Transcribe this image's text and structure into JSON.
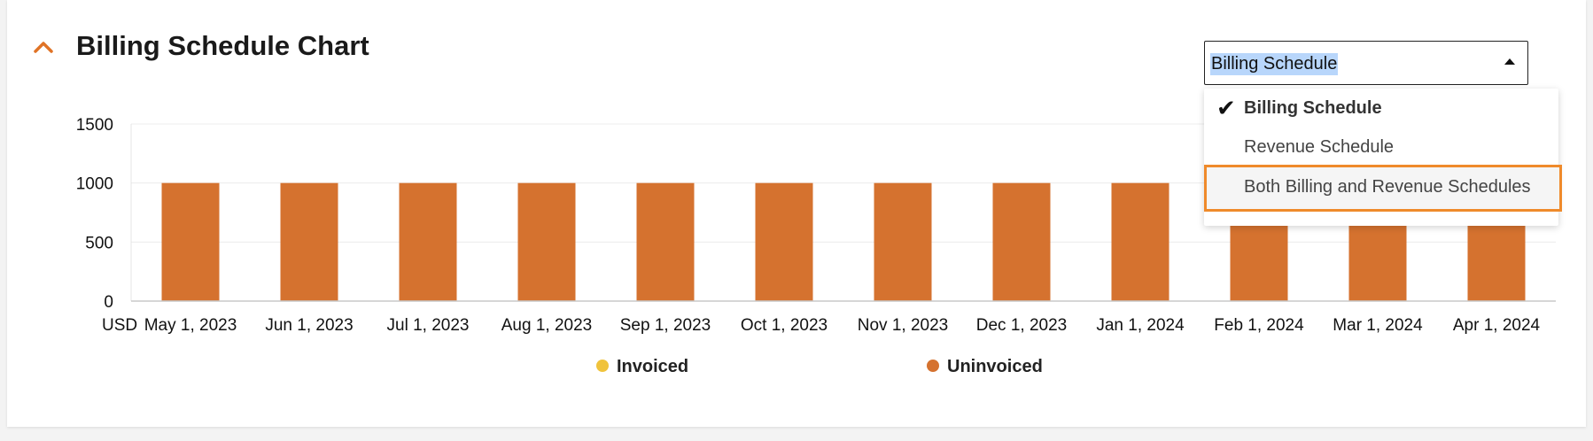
{
  "header": {
    "title": "Billing Schedule Chart"
  },
  "icons": {
    "collapse": "chevron-up-icon",
    "check": "check-icon",
    "caret": "caret-up-icon"
  },
  "select": {
    "value": "Billing Schedule",
    "options": [
      {
        "label": "Billing Schedule",
        "selected": true
      },
      {
        "label": "Revenue Schedule",
        "selected": false
      },
      {
        "label": "Both Billing and Revenue Schedules",
        "selected": false,
        "focused": true
      }
    ]
  },
  "colors": {
    "accent": "#e07326",
    "uninvoiced": "#d5722f",
    "invoiced": "#f0c33c",
    "focus_outline": "#ef8a2b"
  },
  "legend": {
    "invoiced": "Invoiced",
    "uninvoiced": "Uninvoiced"
  },
  "chart_data": {
    "type": "bar",
    "stacked": true,
    "currency_label": "USD",
    "categories": [
      "May 1, 2023",
      "Jun 1, 2023",
      "Jul 1, 2023",
      "Aug 1, 2023",
      "Sep 1, 2023",
      "Oct 1, 2023",
      "Nov 1, 2023",
      "Dec 1, 2023",
      "Jan 1, 2024",
      "Feb 1, 2024",
      "Mar 1, 2024",
      "Apr 1, 2024"
    ],
    "series": [
      {
        "name": "Invoiced",
        "values": [
          0,
          0,
          0,
          0,
          0,
          0,
          0,
          0,
          0,
          0,
          0,
          0
        ]
      },
      {
        "name": "Uninvoiced",
        "values": [
          1000,
          1000,
          1000,
          1000,
          1000,
          1000,
          1000,
          1000,
          1000,
          1000,
          1000,
          1000
        ]
      }
    ],
    "yticks": [
      0,
      500,
      1000,
      1500
    ],
    "ylim": [
      0,
      1500
    ],
    "grid": true,
    "legend_position": "bottom"
  }
}
